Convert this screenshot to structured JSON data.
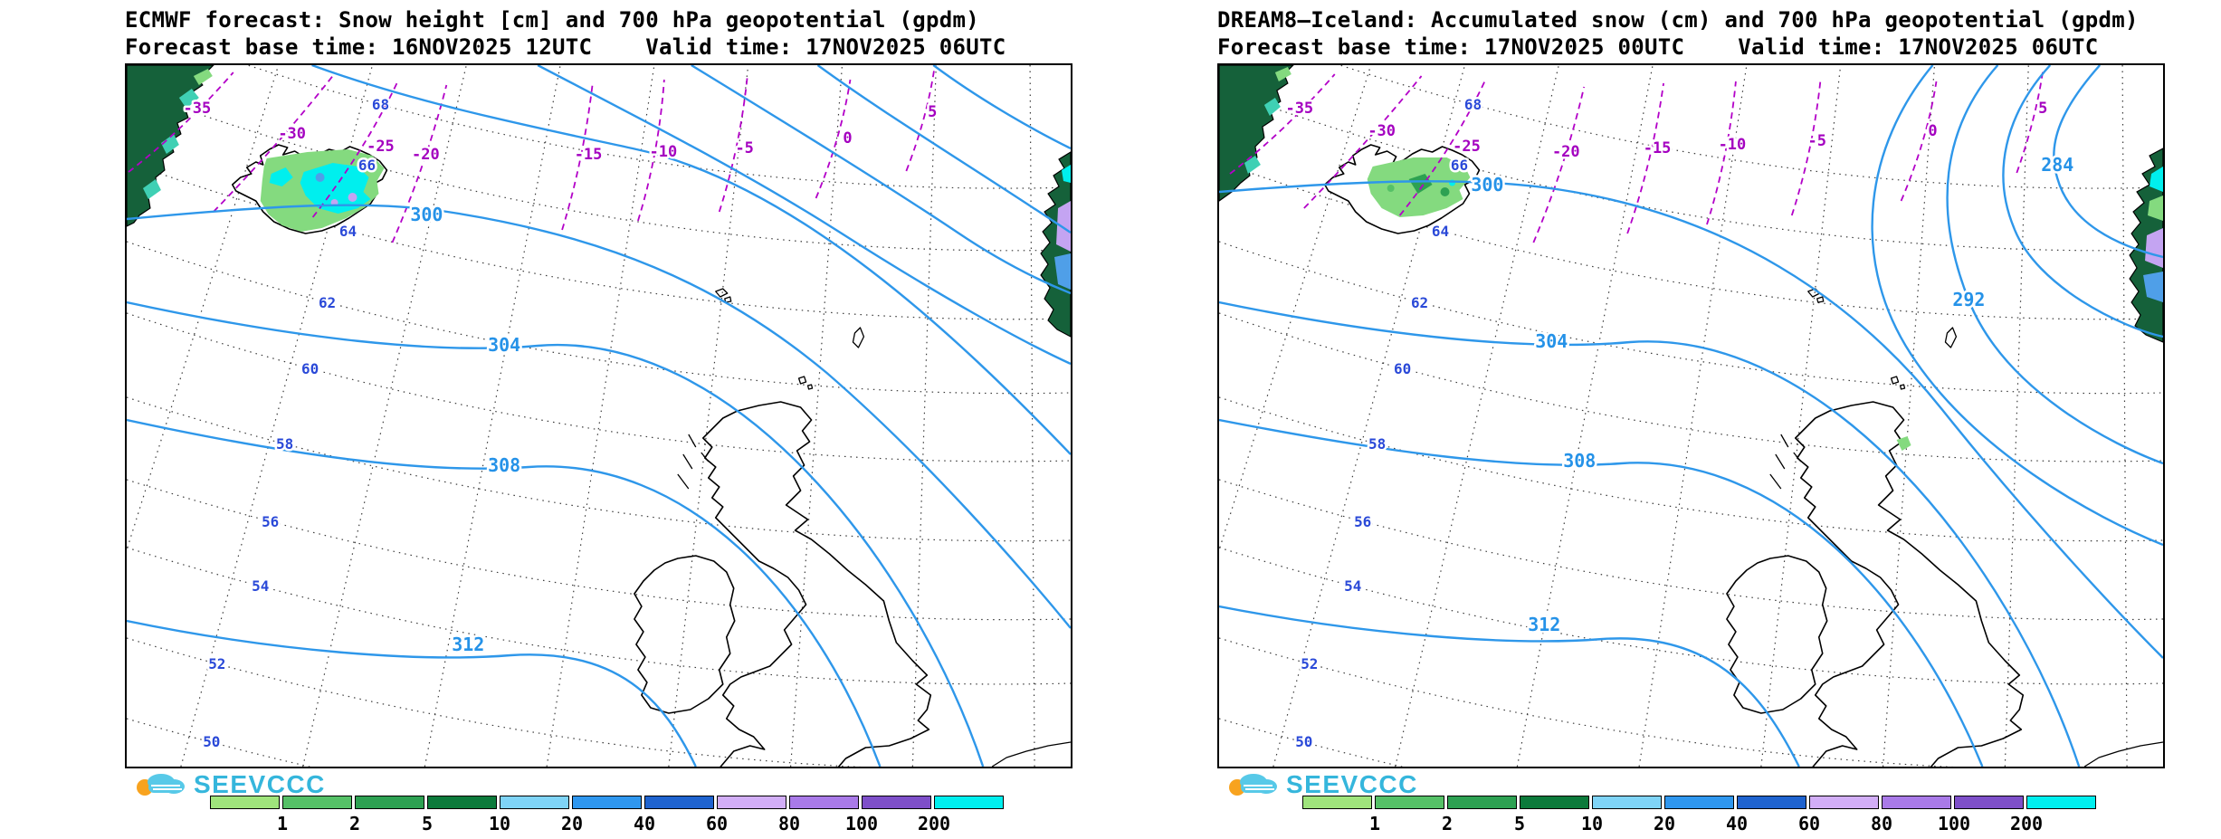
{
  "panels": [
    {
      "title": "ECMWF forecast: Snow height [cm] and 700 hPa geopotential (gpdm)",
      "base_time_line": "Forecast base time: 16NOV2025 12UTC    Valid time: 17NOV2025 06UTC",
      "latitude_labels": [
        "68",
        "66",
        "64",
        "62",
        "60",
        "58",
        "56",
        "54",
        "52",
        "50"
      ],
      "temperature_labels": [
        "-35",
        "-30",
        "-25",
        "-20",
        "-15",
        "-10",
        "-5",
        "0",
        "5"
      ],
      "geopotential_labels": [
        "300",
        "304",
        "308",
        "312"
      ]
    },
    {
      "title": "DREAM8–Iceland: Accumulated snow (cm) and 700 hPa geopotential (gpdm)",
      "base_time_line": "Forecast base time: 17NOV2025 00UTC    Valid time: 17NOV2025 06UTC",
      "latitude_labels": [
        "68",
        "66",
        "64",
        "62",
        "60",
        "58",
        "56",
        "54",
        "52",
        "50"
      ],
      "temperature_labels": [
        "-35",
        "-30",
        "-25",
        "-20",
        "-15",
        "-10",
        "-5",
        "0",
        "5"
      ],
      "geopotential_labels": [
        "300",
        "304",
        "308",
        "312",
        "292",
        "284"
      ]
    }
  ],
  "legend": {
    "brand": "SEEVCCC",
    "scale_ticks": [
      "1",
      "2",
      "5",
      "10",
      "20",
      "40",
      "60",
      "80",
      "100",
      "200"
    ],
    "scale_colors": [
      "#9fe47c",
      "#55c167",
      "#2da152",
      "#0c7a3b",
      "#7fd4f7",
      "#2f97ef",
      "#1f63cf",
      "#d2aef7",
      "#a97ae8",
      "#7e4fc9",
      "#00efef"
    ]
  },
  "colors": {
    "geopotential_line": "#2e97ea",
    "temperature_line": "#b300c8",
    "latitude_label": "#2a49d8",
    "land_dark": "#15613a",
    "logo_cyan": "#35b6dc",
    "background": "#ffffff"
  }
}
